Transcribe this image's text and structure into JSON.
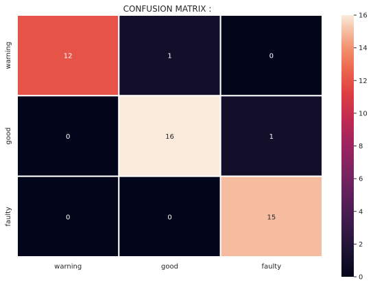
{
  "chart_data": {
    "type": "heatmap",
    "title": "CONFUSION MATRIX :",
    "xlabel": "",
    "ylabel": "",
    "x_categories": [
      "warning",
      "good",
      "faulty"
    ],
    "y_categories": [
      "warning",
      "good",
      "faulty"
    ],
    "values": [
      [
        12,
        1,
        0
      ],
      [
        0,
        16,
        1
      ],
      [
        0,
        0,
        15
      ]
    ],
    "colorbar": {
      "min": 0,
      "max": 16,
      "ticks": [
        0,
        2,
        4,
        6,
        8,
        10,
        12,
        14,
        16
      ],
      "colormap": "rocket"
    },
    "grid": false,
    "cell_separator_color": "#ffffff"
  }
}
